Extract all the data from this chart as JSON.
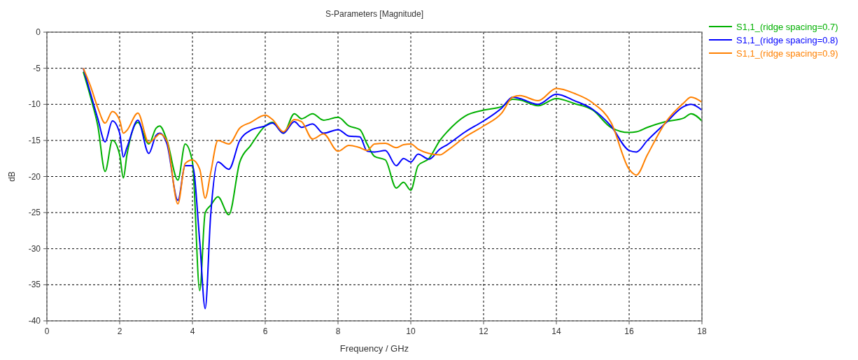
{
  "chart_data": {
    "type": "line",
    "title": "S-Parameters [Magnitude]",
    "xlabel": "Frequency / GHz",
    "ylabel": "dB",
    "x": [
      1,
      1.2,
      1.4,
      1.6,
      1.8,
      2,
      2.1,
      2.2,
      2.5,
      2.8,
      3,
      3.1,
      3.3,
      3.6,
      3.8,
      4,
      4.2,
      4.35,
      4.5,
      4.7,
      5,
      5.3,
      5.6,
      6,
      6.2,
      6.5,
      6.8,
      7,
      7.3,
      7.6,
      8,
      8.3,
      8.6,
      8.8,
      9,
      9.3,
      9.6,
      9.8,
      10,
      10.2,
      10.5,
      10.8,
      11,
      11.5,
      12,
      12.5,
      12.8,
      13,
      13.5,
      14,
      14.5,
      15,
      15.5,
      16,
      16.2,
      16.5,
      17,
      17.5,
      17.7,
      18
    ],
    "series": [
      {
        "name": "S1,1_(ridge spacing=0.7)",
        "color": "#00b000",
        "values": [
          -5.5,
          -9,
          -13,
          -19.3,
          -15,
          -17,
          -20.2,
          -17,
          -12.5,
          -15.5,
          -13.3,
          -13,
          -15,
          -20.5,
          -15.5,
          -18,
          -35.8,
          -25,
          -24,
          -22.8,
          -25.3,
          -18,
          -15.7,
          -13,
          -12.5,
          -14,
          -11.3,
          -12,
          -11.3,
          -12.2,
          -11.8,
          -13,
          -13.5,
          -15.5,
          -17.2,
          -17.7,
          -21.6,
          -20.8,
          -21.9,
          -18.5,
          -17.5,
          -15,
          -13.8,
          -11.6,
          -10.8,
          -10.3,
          -9.3,
          -9.4,
          -10.2,
          -9.2,
          -9.9,
          -10.8,
          -13.2,
          -13.9,
          -13.8,
          -13.2,
          -12.4,
          -11.9,
          -11.3,
          -12.3
        ]
      },
      {
        "name": "S1,1_(ridge spacing=0.8)",
        "color": "#0000ff",
        "values": [
          -5,
          -8.5,
          -12,
          -15.2,
          -12.3,
          -14,
          -17.3,
          -16,
          -12.2,
          -16.8,
          -14.3,
          -14,
          -15.5,
          -23.3,
          -18.5,
          -18.5,
          -29,
          -38.3,
          -25.4,
          -18,
          -19,
          -15,
          -13.6,
          -13,
          -12.6,
          -14,
          -12.4,
          -13.2,
          -12.7,
          -14,
          -13.5,
          -14.4,
          -14.5,
          -16.5,
          -16.6,
          -16.4,
          -18.5,
          -17.5,
          -18,
          -16.9,
          -17.6,
          -16.2,
          -15.6,
          -13.8,
          -12.3,
          -10.5,
          -9,
          -9.2,
          -10,
          -8.6,
          -9.5,
          -10.7,
          -13,
          -16.4,
          -16.6,
          -15,
          -12.6,
          -10.3,
          -10,
          -10.8
        ]
      },
      {
        "name": "S1,1_(ridge spacing=0.9)",
        "color": "#ff8000",
        "values": [
          -5,
          -7.5,
          -10.5,
          -12.6,
          -11,
          -12.2,
          -14,
          -13.6,
          -11.2,
          -15.3,
          -14.5,
          -14.1,
          -15.1,
          -23.8,
          -18.2,
          -17.7,
          -19,
          -23,
          -19.5,
          -15,
          -15.5,
          -13.3,
          -12.5,
          -11.5,
          -12.1,
          -13.8,
          -12.1,
          -12.4,
          -14.8,
          -14.1,
          -16.5,
          -15.7,
          -16,
          -16.4,
          -15.5,
          -15.4,
          -16,
          -15.6,
          -15.5,
          -16.2,
          -16.8,
          -17,
          -16.4,
          -14.5,
          -13,
          -11.2,
          -9,
          -8.8,
          -9.5,
          -7.8,
          -8.5,
          -9.8,
          -12.5,
          -19,
          -19.8,
          -17,
          -12.5,
          -9.8,
          -9,
          -9.7
        ]
      }
    ],
    "xlim": [
      0,
      18
    ],
    "xticks": [
      0,
      2,
      4,
      6,
      8,
      10,
      12,
      14,
      16,
      18
    ],
    "ylim": [
      -40,
      0
    ],
    "yticks": [
      -40,
      -35,
      -30,
      -25,
      -20,
      -15,
      -10,
      -5,
      0
    ],
    "grid": true,
    "legend": "right",
    "line_style": "solid",
    "marker": "none"
  }
}
